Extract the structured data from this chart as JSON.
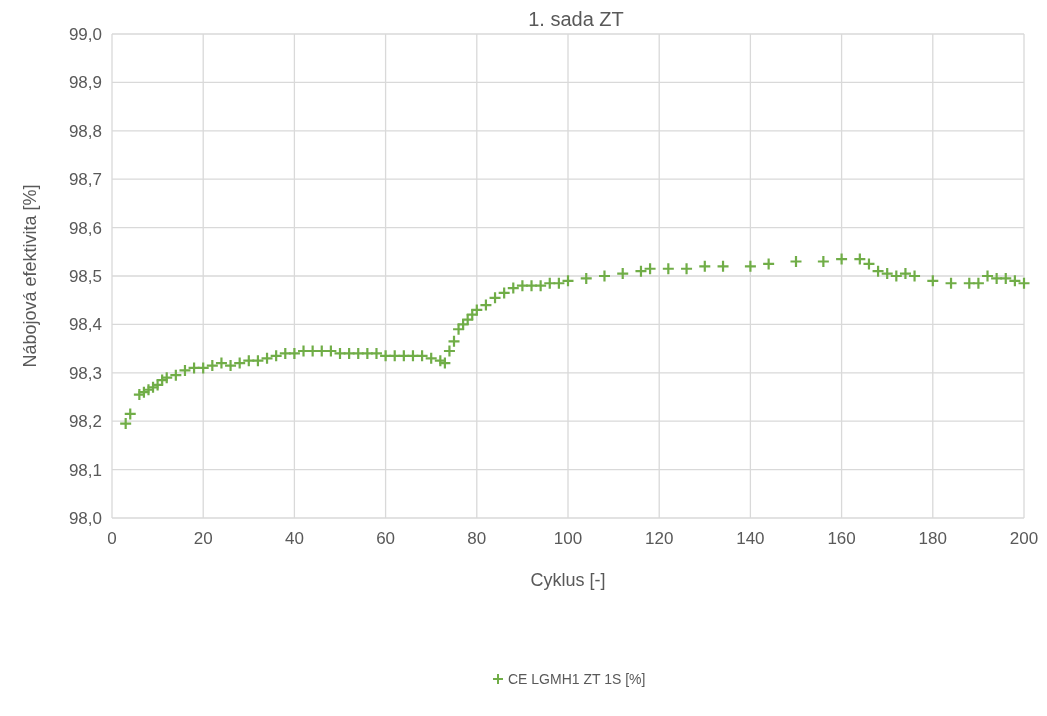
{
  "chart_data": {
    "type": "scatter",
    "title": "1. sada ZT",
    "xlabel": "Cyklus [-]",
    "ylabel": "Nábojová efektivita [%]",
    "xlim": [
      0,
      200
    ],
    "xticks": [
      0,
      20,
      40,
      60,
      80,
      100,
      120,
      140,
      160,
      180,
      200
    ],
    "ylim": [
      98.0,
      99.0
    ],
    "yticks": [
      {
        "value": 98.0,
        "label": "98,0"
      },
      {
        "value": 98.1,
        "label": "98,1"
      },
      {
        "value": 98.2,
        "label": "98,2"
      },
      {
        "value": 98.3,
        "label": "98,3"
      },
      {
        "value": 98.4,
        "label": "98,4"
      },
      {
        "value": 98.5,
        "label": "98,5"
      },
      {
        "value": 98.6,
        "label": "98,6"
      },
      {
        "value": 98.7,
        "label": "98,7"
      },
      {
        "value": 98.8,
        "label": "98,8"
      },
      {
        "value": 98.9,
        "label": "98,9"
      },
      {
        "value": 99.0,
        "label": "99,0"
      }
    ],
    "grid": true,
    "legend": "bottom",
    "marker": "cross",
    "x": [
      3,
      4,
      6,
      7,
      8,
      9,
      10,
      11,
      12,
      14,
      16,
      18,
      20,
      22,
      24,
      26,
      28,
      30,
      32,
      34,
      36,
      38,
      40,
      42,
      44,
      46,
      48,
      50,
      52,
      54,
      56,
      58,
      60,
      62,
      64,
      66,
      68,
      70,
      72,
      73,
      74,
      75,
      76,
      77,
      78,
      79,
      80,
      82,
      84,
      86,
      88,
      90,
      92,
      94,
      96,
      98,
      100,
      104,
      108,
      112,
      116,
      118,
      122,
      126,
      130,
      134,
      140,
      144,
      150,
      156,
      160,
      164,
      166,
      168,
      170,
      172,
      174,
      176,
      180,
      184,
      188,
      190,
      192,
      194,
      196,
      198,
      200
    ],
    "series": [
      {
        "name": "CE LGMH1 ZT 1S [%]",
        "color": "#70ad47",
        "values": [
          98.195,
          98.215,
          98.255,
          98.26,
          98.265,
          98.27,
          98.275,
          98.285,
          98.29,
          98.295,
          98.305,
          98.31,
          98.31,
          98.315,
          98.32,
          98.315,
          98.32,
          98.325,
          98.325,
          98.33,
          98.335,
          98.34,
          98.34,
          98.345,
          98.345,
          98.345,
          98.345,
          98.34,
          98.34,
          98.34,
          98.34,
          98.34,
          98.335,
          98.335,
          98.335,
          98.335,
          98.335,
          98.33,
          98.325,
          98.32,
          98.345,
          98.365,
          98.39,
          98.4,
          98.41,
          98.42,
          98.43,
          98.44,
          98.455,
          98.465,
          98.475,
          98.48,
          98.48,
          98.48,
          98.485,
          98.485,
          98.49,
          98.495,
          98.5,
          98.505,
          98.51,
          98.515,
          98.515,
          98.515,
          98.52,
          98.52,
          98.52,
          98.525,
          98.53,
          98.53,
          98.535,
          98.535,
          98.525,
          98.51,
          98.505,
          98.5,
          98.505,
          98.5,
          98.49,
          98.485,
          98.485,
          98.485,
          98.5,
          98.495,
          98.495,
          98.49,
          98.485
        ]
      }
    ]
  }
}
